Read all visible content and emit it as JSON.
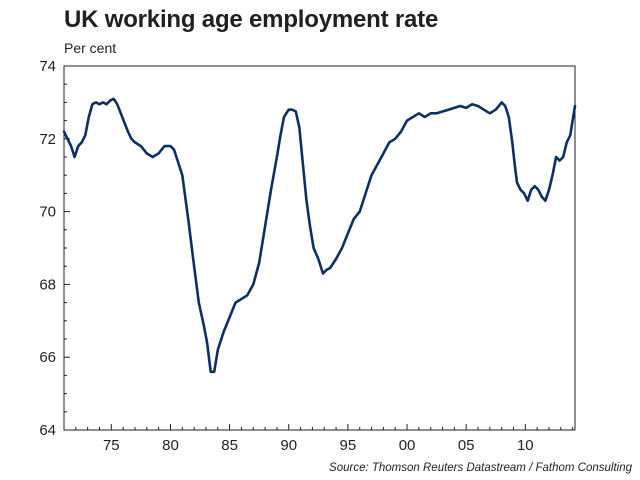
{
  "title": "UK working age employment rate",
  "subtitle": "Per cent",
  "source": "Source: Thomson Reuters Datastream / Fathom Consulting",
  "chart_data": {
    "type": "line",
    "title": "UK working age employment rate",
    "ylabel": "Per cent",
    "xlabel": "",
    "xlim": [
      1971,
      2014.2
    ],
    "ylim": [
      64,
      74
    ],
    "x_ticks": [
      75,
      80,
      85,
      90,
      95,
      0,
      5,
      10
    ],
    "x_tick_labels": [
      "75",
      "80",
      "85",
      "90",
      "95",
      "00",
      "05",
      "10"
    ],
    "y_ticks": [
      64,
      66,
      68,
      70,
      72,
      74
    ],
    "y_tick_labels": [
      "64",
      "66",
      "68",
      "70",
      "72",
      "74"
    ],
    "grid": false,
    "line_color": "#0d2f63",
    "series": [
      {
        "x": [
          1971,
          1971.3,
          1971.6,
          1971.9,
          1972.2,
          1972.5,
          1972.8,
          1973.1,
          1973.4,
          1973.7,
          1974.0,
          1974.3,
          1974.6,
          1974.9,
          1975.2,
          1975.5,
          1975.8,
          1976.1,
          1976.4,
          1976.7,
          1977.0,
          1977.5,
          1978.0,
          1978.5,
          1979.0,
          1979.5,
          1980.0,
          1980.3,
          1980.6,
          1981.0,
          1981.5,
          1982.0,
          1982.4,
          1982.8,
          1983.1,
          1983.4,
          1983.7,
          1984.0,
          1984.5,
          1985.0,
          1985.5,
          1986.0,
          1986.5,
          1987.0,
          1987.5,
          1988.0,
          1988.5,
          1989.0,
          1989.3,
          1989.6,
          1990.0,
          1990.3,
          1990.6,
          1990.9,
          1991.2,
          1991.5,
          1991.8,
          1992.1,
          1992.5,
          1992.9,
          1993.2,
          1993.5,
          1994.0,
          1994.5,
          1995.0,
          1995.5,
          1996.0,
          1996.5,
          1997.0,
          1997.5,
          1998.0,
          1998.5,
          1999.0,
          1999.5,
          2000.0,
          2000.5,
          2001.0,
          2001.5,
          2002.0,
          2002.5,
          2003.0,
          2003.5,
          2004.0,
          2004.5,
          2005.0,
          2005.5,
          2006.0,
          2006.5,
          2007.0,
          2007.5,
          2008.0,
          2008.3,
          2008.6,
          2008.9,
          2009.1,
          2009.3,
          2009.6,
          2009.9,
          2010.2,
          2010.5,
          2010.8,
          2011.1,
          2011.4,
          2011.7,
          2012.0,
          2012.3,
          2012.6,
          2012.9,
          2013.2,
          2013.5,
          2013.8,
          2014.0,
          2014.2
        ],
        "values": [
          72.2,
          72.0,
          71.8,
          71.5,
          71.8,
          71.9,
          72.1,
          72.6,
          72.95,
          73.0,
          72.95,
          73.0,
          72.95,
          73.05,
          73.1,
          72.95,
          72.7,
          72.45,
          72.2,
          72.0,
          71.9,
          71.8,
          71.6,
          71.5,
          71.6,
          71.8,
          71.8,
          71.7,
          71.4,
          71.0,
          69.8,
          68.5,
          67.5,
          66.9,
          66.4,
          65.6,
          65.6,
          66.2,
          66.7,
          67.1,
          67.5,
          67.6,
          67.7,
          68.0,
          68.6,
          69.6,
          70.6,
          71.5,
          72.1,
          72.6,
          72.8,
          72.8,
          72.75,
          72.3,
          71.3,
          70.3,
          69.6,
          69.0,
          68.7,
          68.3,
          68.4,
          68.45,
          68.7,
          69.0,
          69.4,
          69.8,
          70.0,
          70.5,
          71.0,
          71.3,
          71.6,
          71.9,
          72.0,
          72.2,
          72.5,
          72.6,
          72.7,
          72.6,
          72.7,
          72.7,
          72.75,
          72.8,
          72.85,
          72.9,
          72.85,
          72.95,
          72.9,
          72.8,
          72.7,
          72.8,
          73.0,
          72.9,
          72.6,
          71.9,
          71.3,
          70.8,
          70.6,
          70.5,
          70.3,
          70.6,
          70.7,
          70.6,
          70.4,
          70.3,
          70.6,
          71.0,
          71.5,
          71.4,
          71.5,
          71.9,
          72.1,
          72.5,
          72.9
        ]
      }
    ]
  }
}
